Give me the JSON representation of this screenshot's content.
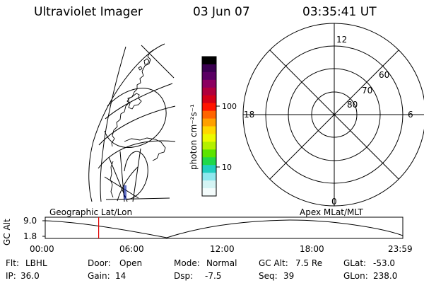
{
  "header": {
    "title": "Ultraviolet Imager",
    "date": "03 Jun 07",
    "time": "03:35:41 UT"
  },
  "colorbar": {
    "unit_label": "photon cm⁻²s⁻¹",
    "tick_labels": [
      "100",
      "10"
    ],
    "colors": [
      "#000000",
      "#3a0050",
      "#5a0064",
      "#8c0060",
      "#b0003c",
      "#d40018",
      "#ff1400",
      "#ff6400",
      "#ffa000",
      "#ffd800",
      "#ecfa00",
      "#b4f000",
      "#5ce400",
      "#20d84a",
      "#22cfc0",
      "#8ee8ee",
      "#d4f4f4",
      "#f4fcfc"
    ]
  },
  "polar_plot": {
    "mlt_labels": {
      "top": "12",
      "left": "18",
      "right": "6",
      "bottom": "0"
    },
    "lat_labels": [
      "60",
      "70",
      "80"
    ]
  },
  "timeline": {
    "left_label": "Geographic Lat/Lon",
    "right_label": "Apex MLat/MLT",
    "y_axis_label": "GC Alt",
    "y_ticks": [
      "9.0",
      "1.8"
    ],
    "x_ticks": [
      "00:00",
      "06:00",
      "12:00",
      "18:00",
      "23:59"
    ],
    "current_time_marker": "03:35",
    "marker_color": "#e00000"
  },
  "info": {
    "row1": [
      {
        "label": "Flt:",
        "value": "LBHL"
      },
      {
        "label": "Door:",
        "value": "Open"
      },
      {
        "label": "Mode:",
        "value": "Normal"
      },
      {
        "label": "GC Alt:",
        "value": "7.5 Re"
      },
      {
        "label": "GLat:",
        "value": "-53.0"
      }
    ],
    "row2": [
      {
        "label": "IP:",
        "value": "36.0"
      },
      {
        "label": "Gain:",
        "value": "14"
      },
      {
        "label": "Dsp:",
        "value": "-7.5"
      },
      {
        "label": "Seq:",
        "value": "39"
      },
      {
        "label": "GLon:",
        "value": "238.0"
      }
    ]
  }
}
